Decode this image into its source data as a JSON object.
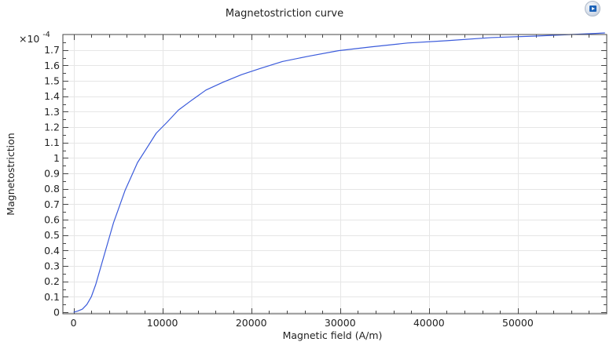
{
  "chart_data": {
    "type": "line",
    "title": "Magnetostriction curve",
    "xlabel": "Magnetic field (A/m)",
    "ylabel": "Magnetostriction",
    "y_multiplier": "×10",
    "y_multiplier_exponent": "-4",
    "xlim": [
      -1200,
      60000
    ],
    "ylim": [
      -0.01,
      1.8
    ],
    "x_ticks": [
      0,
      10000,
      20000,
      30000,
      40000,
      50000
    ],
    "x_tick_labels": [
      "0",
      "10000",
      "20000",
      "30000",
      "40000",
      "50000"
    ],
    "y_ticks": [
      0,
      0.1,
      0.2,
      0.3,
      0.4,
      0.5,
      0.6,
      0.7,
      0.8,
      0.9,
      1,
      1.1,
      1.2,
      1.3,
      1.4,
      1.5,
      1.6,
      1.7
    ],
    "y_tick_labels": [
      "0",
      "0.1",
      "0.2",
      "0.3",
      "0.4",
      "0.5",
      "0.6",
      "0.7",
      "0.8",
      "0.9",
      "1",
      "1.1",
      "1.2",
      "1.3",
      "1.4",
      "1.5",
      "1.6",
      "1.7"
    ],
    "x_grid_values": [
      0,
      10000,
      20000,
      30000,
      40000,
      50000
    ],
    "y_grid_values": [
      0,
      0.1,
      0.2,
      0.3,
      0.4,
      0.5,
      0.6,
      0.7,
      0.8,
      0.9,
      1,
      1.1,
      1.2,
      1.3,
      1.4,
      1.5,
      1.6,
      1.7
    ],
    "x_minor_ticks": [
      2000,
      4000,
      6000,
      8000,
      12000,
      14000,
      16000,
      18000,
      22000,
      24000,
      26000,
      28000,
      32000,
      34000,
      36000,
      38000,
      42000,
      44000,
      46000,
      48000,
      52000,
      54000,
      56000,
      58000
    ],
    "y_minor_ticks": [
      0.05,
      0.15,
      0.25,
      0.35,
      0.45,
      0.55,
      0.65,
      0.75,
      0.85,
      0.95,
      1.05,
      1.15,
      1.25,
      1.35,
      1.45,
      1.55,
      1.65,
      1.75
    ],
    "grid": true,
    "series": [
      {
        "color": "#3b5bdb",
        "x": [
          0,
          500,
          1000,
          1500,
          2000,
          2500,
          3000,
          3500,
          4000,
          4500,
          5000,
          5800,
          6500,
          7200,
          8200,
          9300,
          10500,
          11800,
          13200,
          14900,
          16800,
          18900,
          21000,
          23500,
          26500,
          29800,
          33500,
          37600,
          42000,
          47000,
          52000,
          56000,
          59800
        ],
        "y": [
          0,
          0.008,
          0.02,
          0.05,
          0.1,
          0.18,
          0.28,
          0.38,
          0.48,
          0.58,
          0.66,
          0.79,
          0.88,
          0.97,
          1.06,
          1.16,
          1.23,
          1.31,
          1.37,
          1.44,
          1.49,
          1.54,
          1.58,
          1.625,
          1.66,
          1.695,
          1.72,
          1.745,
          1.76,
          1.78,
          1.79,
          1.8,
          1.81
        ]
      }
    ]
  },
  "toolbar": {
    "badge_icon": "app-logo-icon"
  }
}
